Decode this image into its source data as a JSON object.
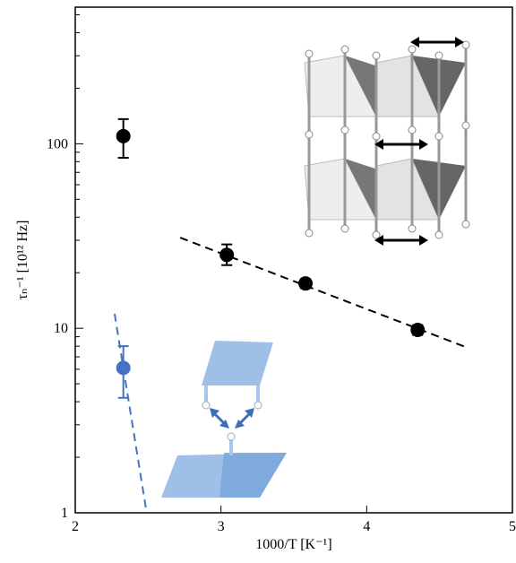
{
  "chart_data": {
    "type": "scatter",
    "xlabel": "1000/T [K⁻¹]",
    "ylabel": "τₙ⁻¹ [10¹² Hz]",
    "xlim": [
      2,
      5
    ],
    "xticks": [
      2,
      3,
      4,
      5
    ],
    "ylim": [
      1,
      550
    ],
    "yscale": "log",
    "yticks": [
      1,
      10,
      100
    ],
    "yminorticks": [
      2,
      3,
      4,
      5,
      6,
      7,
      8,
      9,
      20,
      30,
      40,
      50,
      60,
      70,
      80,
      90,
      200,
      300,
      400,
      500
    ],
    "series": [
      {
        "color": "#000000",
        "x": [
          2.33,
          3.04,
          3.58,
          4.35
        ],
        "values": [
          110,
          25,
          17.5,
          9.8
        ],
        "err_low": [
          84,
          22,
          16.5,
          9.2
        ],
        "err_high": [
          136,
          28.5,
          18.5,
          10.4
        ]
      },
      {
        "color": "#4472c4",
        "x": [
          2.33
        ],
        "values": [
          6.1
        ],
        "err_low": [
          4.2
        ],
        "err_high": [
          8
        ]
      }
    ],
    "fits": [
      {
        "color": "#000000",
        "x": [
          2.72,
          4.7
        ],
        "values": [
          31,
          7.8
        ]
      },
      {
        "color": "#4472c4",
        "x": [
          2.27,
          2.49
        ],
        "values": [
          12,
          1
        ]
      }
    ]
  }
}
